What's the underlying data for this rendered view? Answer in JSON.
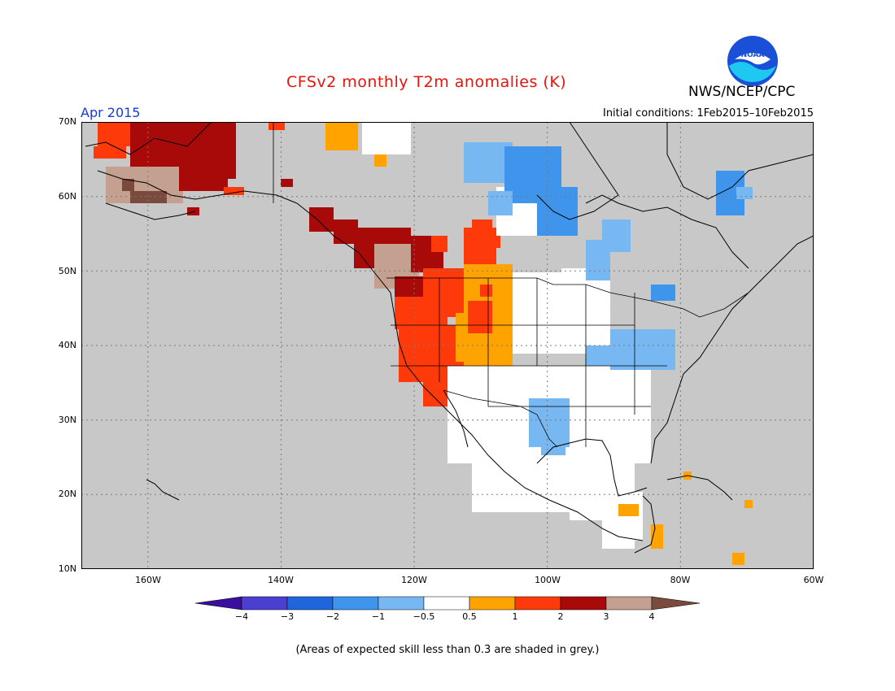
{
  "header": {
    "title": "CFSv2 monthly T2m anomalies (K)",
    "agency": "NWS/NCEP/CPC",
    "logo_text": "NOAA",
    "month": "Apr 2015",
    "initial_conditions": "Initial conditions: 1Feb2015–10Feb2015"
  },
  "map": {
    "projection": "lat-lon",
    "lon_range": [
      -170,
      -60
    ],
    "lat_range": [
      10,
      70
    ],
    "background_color": "#c8c8c8",
    "grid": "dotted",
    "lat_ticks": [
      "70N",
      "60N",
      "50N",
      "40N",
      "30N",
      "20N",
      "10N"
    ],
    "lon_ticks": [
      "160W",
      "140W",
      "120W",
      "100W",
      "80W",
      "60W"
    ]
  },
  "colorbar": {
    "ticks": [
      "−4",
      "−3",
      "−2",
      "−1",
      "−0.5",
      "0.5",
      "1",
      "2",
      "3",
      "4"
    ],
    "colors": [
      "#3a0fa0",
      "#4b3fd0",
      "#1f66dc",
      "#3f94ec",
      "#78b8f2",
      "#ffffff",
      "#ffa300",
      "#ff3a0a",
      "#a80a0a",
      "#c4a090",
      "#7a4a3c"
    ]
  },
  "footnote": "(Areas of expected skill less than 0.3 are shaded in grey.)"
}
